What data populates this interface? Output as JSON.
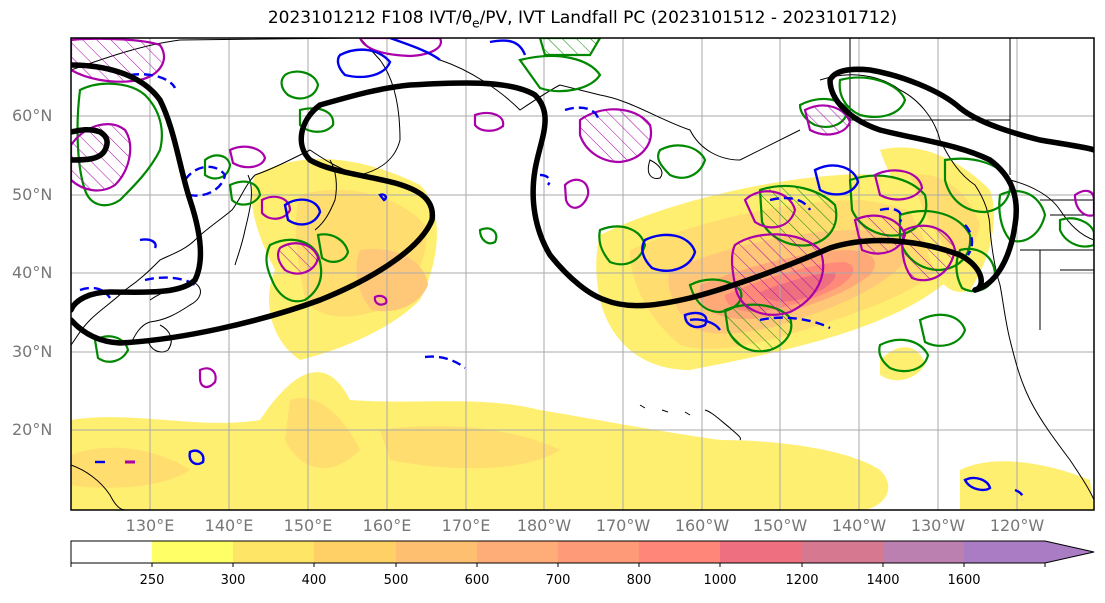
{
  "title_main": "2023101212 F108 IVT/",
  "title_theta": "θ",
  "title_sub": "e",
  "title_rest": "/PV, IVT Landfall PC (2023101512 - 2023101712)",
  "map": {
    "lat_labels": [
      "60°N",
      "50°N",
      "40°N",
      "30°N",
      "20°N"
    ],
    "lon_labels": [
      "130°E",
      "140°E",
      "150°E",
      "160°E",
      "170°E",
      "180°W",
      "170°W",
      "160°W",
      "150°W",
      "140°W",
      "130°W",
      "120°W"
    ],
    "colors": {
      "ocean": "#ffffff",
      "coast": "#000000",
      "grid": "#aaaaaa",
      "pv_contour": "#000000",
      "theta_e_positive": "#aa00aa",
      "theta_e_negative": "#0000ee",
      "green_contour": "#008800"
    }
  },
  "colorbar": {
    "levels": [
      "250",
      "300",
      "400",
      "500",
      "600",
      "700",
      "800",
      "1000",
      "1200",
      "1400",
      "1600"
    ],
    "colors": [
      "#ffffff",
      "#ffff66",
      "#ffe566",
      "#ffd066",
      "#ffbf70",
      "#ffad78",
      "#ff9a78",
      "#ff8678",
      "#ee7080",
      "#d67890",
      "#bb80b0",
      "#a97cc4"
    ]
  }
}
